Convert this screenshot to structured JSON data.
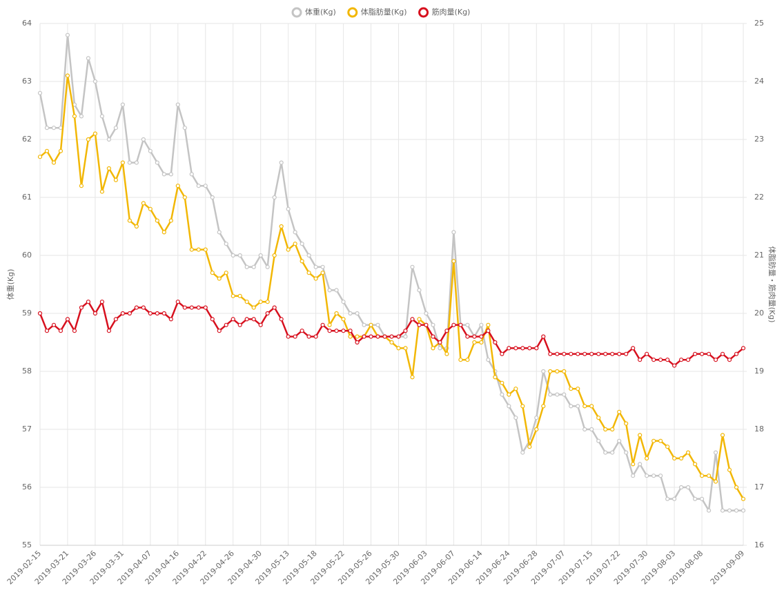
{
  "chart_data": {
    "type": "line",
    "legend_position": "top",
    "grid": true,
    "ylabel": "体重(Kg)",
    "y2label": "体脂肪量・筋肉量(Kg)",
    "ylim": [
      55,
      64
    ],
    "yticks": [
      55,
      56,
      57,
      58,
      59,
      60,
      61,
      62,
      63,
      64
    ],
    "y2lim": [
      16,
      25
    ],
    "y2ticks": [
      16,
      17,
      18,
      19,
      20,
      21,
      22,
      23,
      24,
      25
    ],
    "categories": [
      "2019-02-15",
      null,
      null,
      null,
      "2019-03-21",
      null,
      null,
      null,
      "2019-03-26",
      null,
      null,
      null,
      "2019-03-31",
      null,
      null,
      null,
      "2019-04-07",
      null,
      null,
      null,
      "2019-04-16",
      null,
      null,
      null,
      "2019-04-22",
      null,
      null,
      null,
      "2019-04-26",
      null,
      null,
      null,
      "2019-04-30",
      null,
      null,
      null,
      "2019-05-13",
      null,
      null,
      null,
      "2019-05-18",
      null,
      null,
      null,
      "2019-05-22",
      null,
      null,
      null,
      "2019-05-26",
      null,
      null,
      null,
      "2019-05-30",
      null,
      null,
      null,
      "2019-06-03",
      null,
      null,
      null,
      "2019-06-07",
      null,
      null,
      null,
      "2019-06-14",
      null,
      null,
      null,
      "2019-06-24",
      null,
      null,
      null,
      "2019-06-28",
      null,
      null,
      null,
      "2019-07-07",
      null,
      null,
      null,
      "2019-07-15",
      null,
      null,
      null,
      "2019-07-22",
      null,
      null,
      null,
      "2019-07-30",
      null,
      null,
      null,
      "2019-08-03",
      null,
      null,
      null,
      "2019-08-08",
      null,
      null,
      null,
      null,
      null,
      "2019-09-09"
    ],
    "series": [
      {
        "name": "体重(Kg)",
        "color": "#c4c4c4",
        "axis": "y",
        "values": [
          62.8,
          62.2,
          62.2,
          62.2,
          63.8,
          62.6,
          62.4,
          63.4,
          63.0,
          62.4,
          62.0,
          62.2,
          62.6,
          61.6,
          61.6,
          62.0,
          61.8,
          61.6,
          61.4,
          61.4,
          62.6,
          62.2,
          61.4,
          61.2,
          61.2,
          61.0,
          60.4,
          60.2,
          60.0,
          60.0,
          59.8,
          59.8,
          60.0,
          59.8,
          61.0,
          61.6,
          60.8,
          60.4,
          60.2,
          60.0,
          59.8,
          59.8,
          59.4,
          59.4,
          59.2,
          59.0,
          59.0,
          58.8,
          58.8,
          58.8,
          58.6,
          58.6,
          58.6,
          58.6,
          59.8,
          59.4,
          59.0,
          58.8,
          58.4,
          58.4,
          60.4,
          58.8,
          58.8,
          58.6,
          58.8,
          58.2,
          58.0,
          57.6,
          57.4,
          57.2,
          56.6,
          56.8,
          57.2,
          58.0,
          57.6,
          57.6,
          57.6,
          57.4,
          57.4,
          57.0,
          57.0,
          56.8,
          56.6,
          56.6,
          56.8,
          56.6,
          56.2,
          56.4,
          56.2,
          56.2,
          56.2,
          55.8,
          55.8,
          56.0,
          56.0,
          55.8,
          55.8,
          55.6,
          56.6,
          55.6,
          55.6,
          55.6,
          55.6
        ]
      },
      {
        "name": "体脂肪量(Kg)",
        "color": "#f2b705",
        "axis": "y2",
        "values": [
          22.7,
          22.8,
          22.6,
          22.8,
          24.1,
          23.4,
          22.2,
          23.0,
          23.1,
          22.1,
          22.5,
          22.3,
          22.6,
          21.6,
          21.5,
          21.9,
          21.8,
          21.6,
          21.4,
          21.6,
          22.2,
          22.0,
          21.1,
          21.1,
          21.1,
          20.7,
          20.6,
          20.7,
          20.3,
          20.3,
          20.2,
          20.1,
          20.2,
          20.2,
          21.0,
          21.5,
          21.1,
          21.2,
          20.9,
          20.7,
          20.6,
          20.7,
          19.8,
          20.0,
          19.9,
          19.6,
          19.6,
          19.6,
          19.8,
          19.6,
          19.6,
          19.5,
          19.4,
          19.4,
          18.9,
          19.9,
          19.8,
          19.4,
          19.5,
          19.3,
          20.9,
          19.2,
          19.2,
          19.5,
          19.5,
          19.8,
          18.9,
          18.8,
          18.6,
          18.7,
          18.4,
          17.7,
          18.0,
          18.4,
          19.0,
          19.0,
          19.0,
          18.7,
          18.7,
          18.4,
          18.4,
          18.2,
          18.0,
          18.0,
          18.3,
          18.1,
          17.4,
          17.9,
          17.5,
          17.8,
          17.8,
          17.7,
          17.5,
          17.5,
          17.6,
          17.4,
          17.2,
          17.2,
          17.1,
          17.9,
          17.3,
          17.0,
          16.8
        ]
      },
      {
        "name": "筋肉量(Kg)",
        "color": "#d7101e",
        "axis": "y2",
        "values": [
          20.0,
          19.7,
          19.8,
          19.7,
          19.9,
          19.7,
          20.1,
          20.2,
          20.0,
          20.2,
          19.7,
          19.9,
          20.0,
          20.0,
          20.1,
          20.1,
          20.0,
          20.0,
          20.0,
          19.9,
          20.2,
          20.1,
          20.1,
          20.1,
          20.1,
          19.9,
          19.7,
          19.8,
          19.9,
          19.8,
          19.9,
          19.9,
          19.8,
          20.0,
          20.1,
          19.9,
          19.6,
          19.6,
          19.7,
          19.6,
          19.6,
          19.8,
          19.7,
          19.7,
          19.7,
          19.7,
          19.5,
          19.6,
          19.6,
          19.6,
          19.6,
          19.6,
          19.6,
          19.7,
          19.9,
          19.8,
          19.8,
          19.6,
          19.5,
          19.7,
          19.8,
          19.8,
          19.6,
          19.6,
          19.6,
          19.7,
          19.5,
          19.3,
          19.4,
          19.4,
          19.4,
          19.4,
          19.4,
          19.6,
          19.3,
          19.3,
          19.3,
          19.3,
          19.3,
          19.3,
          19.3,
          19.3,
          19.3,
          19.3,
          19.3,
          19.3,
          19.4,
          19.2,
          19.3,
          19.2,
          19.2,
          19.2,
          19.1,
          19.2,
          19.2,
          19.3,
          19.3,
          19.3,
          19.2,
          19.3,
          19.2,
          19.3,
          19.4
        ]
      }
    ]
  }
}
